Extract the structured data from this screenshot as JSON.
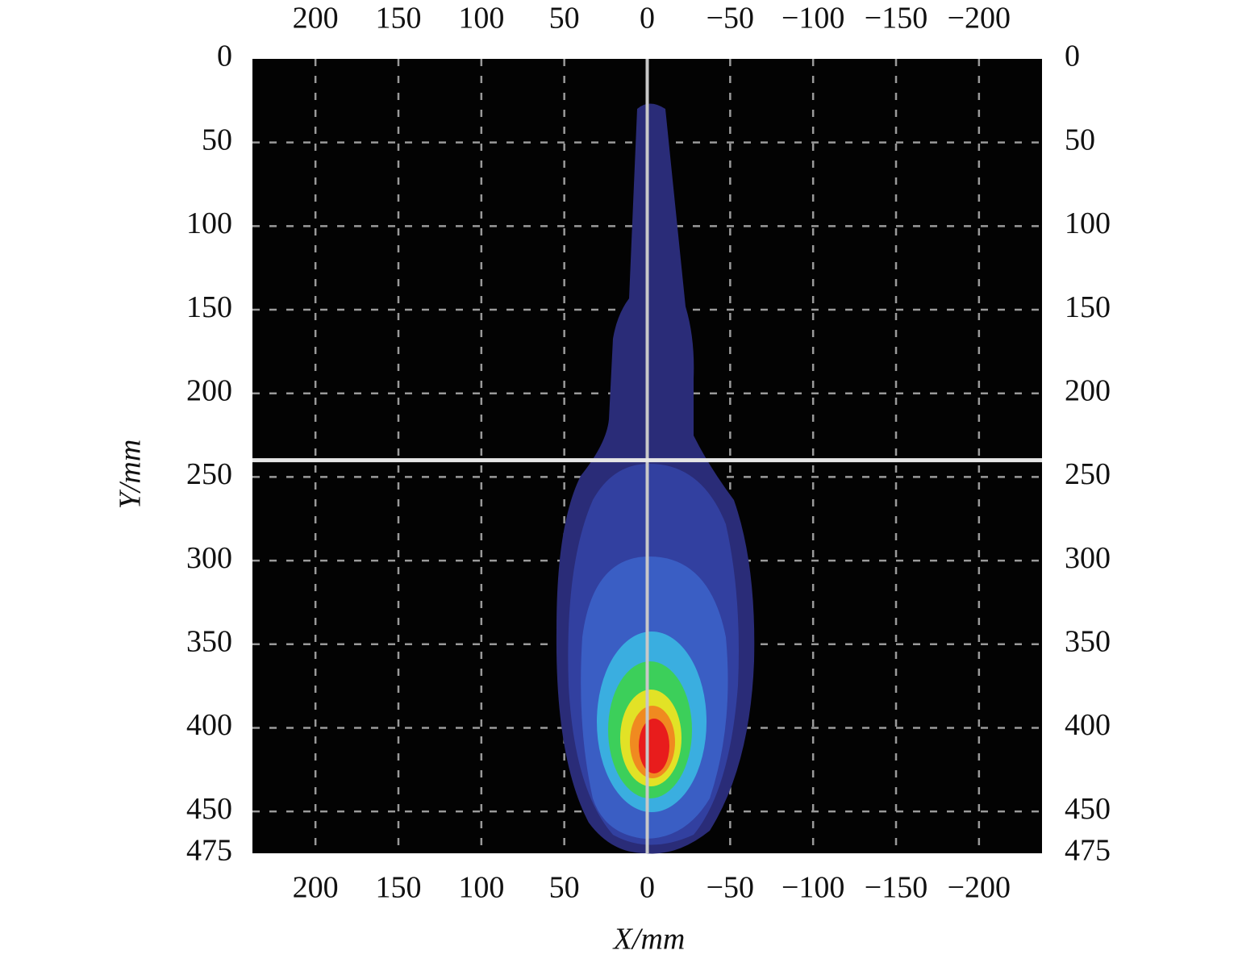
{
  "chart_data": {
    "type": "contour",
    "xlabel": "X/mm",
    "ylabel": "Y/mm",
    "xlim": [
      238,
      -238
    ],
    "ylim": [
      0,
      475
    ],
    "xticks": [
      200,
      150,
      100,
      50,
      0,
      {
        "value": -50,
        "label": "−50"
      },
      {
        "value": -100,
        "label": "−100"
      },
      {
        "value": -150,
        "label": "−150"
      },
      {
        "value": -200,
        "label": "−200"
      }
    ],
    "yticks": [
      0,
      50,
      100,
      150,
      200,
      250,
      300,
      350,
      400,
      450,
      475
    ],
    "reference_lines": {
      "x": 0,
      "y": 240
    },
    "grid": true
  }
}
